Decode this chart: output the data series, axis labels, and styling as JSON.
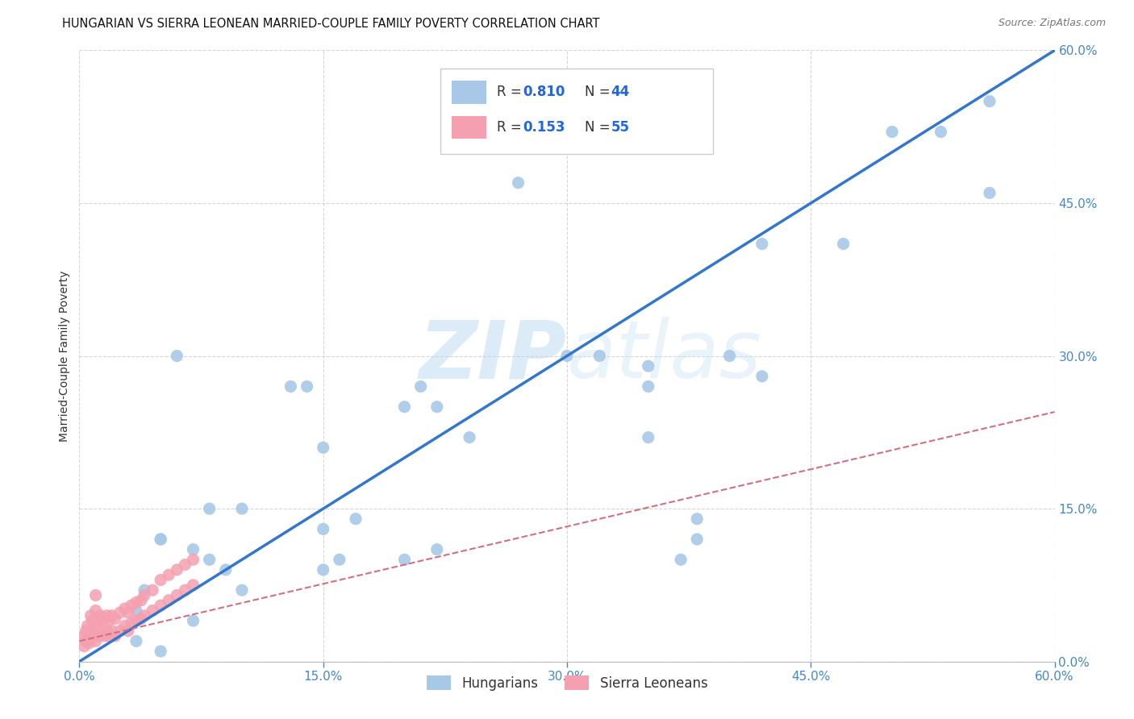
{
  "title": "HUNGARIAN VS SIERRA LEONEAN MARRIED-COUPLE FAMILY POVERTY CORRELATION CHART",
  "source": "Source: ZipAtlas.com",
  "ylabel": "Married-Couple Family Poverty",
  "xlim": [
    0,
    0.6
  ],
  "ylim": [
    0,
    0.6
  ],
  "xtick_vals": [
    0.0,
    0.15,
    0.3,
    0.45,
    0.6
  ],
  "ytick_vals": [
    0.0,
    0.15,
    0.3,
    0.45,
    0.6
  ],
  "hungarian_color": "#a8c8e8",
  "sierra_color": "#f4a0b0",
  "hungarian_line_color": "#3377cc",
  "sierra_line_color": "#d07080",
  "background_color": "#ffffff",
  "grid_color": "#cccccc",
  "watermark_color": "#ddeef8",
  "legend_r_hungarian": "R = 0.810",
  "legend_n_hungarian": "N = 44",
  "legend_r_sierra": "R = 0.153",
  "legend_n_sierra": "N = 55",
  "legend_label_hungarian": "Hungarians",
  "legend_label_sierra": "Sierra Leoneans",
  "hungarian_x": [
    0.035,
    0.035,
    0.04,
    0.05,
    0.07,
    0.09,
    0.1,
    0.13,
    0.14,
    0.15,
    0.15,
    0.16,
    0.17,
    0.2,
    0.2,
    0.21,
    0.22,
    0.22,
    0.24,
    0.27,
    0.3,
    0.32,
    0.35,
    0.35,
    0.35,
    0.37,
    0.38,
    0.38,
    0.4,
    0.42,
    0.42,
    0.47,
    0.5,
    0.53,
    0.56,
    0.56,
    0.06,
    0.08,
    0.08,
    0.1,
    0.05,
    0.05,
    0.07,
    0.15
  ],
  "hungarian_y": [
    0.05,
    0.02,
    0.07,
    0.12,
    0.11,
    0.09,
    0.07,
    0.27,
    0.27,
    0.09,
    0.21,
    0.1,
    0.14,
    0.1,
    0.25,
    0.27,
    0.25,
    0.11,
    0.22,
    0.47,
    0.3,
    0.3,
    0.29,
    0.27,
    0.22,
    0.1,
    0.14,
    0.12,
    0.3,
    0.41,
    0.28,
    0.41,
    0.52,
    0.52,
    0.46,
    0.55,
    0.3,
    0.15,
    0.1,
    0.15,
    0.12,
    0.01,
    0.04,
    0.13
  ],
  "sierra_x": [
    0.005,
    0.005,
    0.007,
    0.007,
    0.008,
    0.008,
    0.01,
    0.01,
    0.01,
    0.01,
    0.012,
    0.012,
    0.013,
    0.013,
    0.015,
    0.015,
    0.017,
    0.017,
    0.018,
    0.018,
    0.02,
    0.02,
    0.022,
    0.022,
    0.025,
    0.025,
    0.028,
    0.028,
    0.03,
    0.03,
    0.032,
    0.032,
    0.035,
    0.035,
    0.038,
    0.038,
    0.04,
    0.04,
    0.045,
    0.045,
    0.05,
    0.05,
    0.055,
    0.055,
    0.06,
    0.06,
    0.065,
    0.065,
    0.07,
    0.07,
    0.003,
    0.003,
    0.004,
    0.004,
    0.006
  ],
  "sierra_y": [
    0.02,
    0.035,
    0.03,
    0.045,
    0.025,
    0.04,
    0.02,
    0.035,
    0.05,
    0.065,
    0.025,
    0.04,
    0.03,
    0.045,
    0.025,
    0.04,
    0.03,
    0.045,
    0.025,
    0.04,
    0.03,
    0.045,
    0.025,
    0.042,
    0.03,
    0.048,
    0.035,
    0.052,
    0.03,
    0.048,
    0.038,
    0.055,
    0.04,
    0.058,
    0.042,
    0.06,
    0.045,
    0.065,
    0.05,
    0.07,
    0.055,
    0.08,
    0.06,
    0.085,
    0.065,
    0.09,
    0.07,
    0.095,
    0.075,
    0.1,
    0.015,
    0.025,
    0.02,
    0.03,
    0.018
  ],
  "hungarian_line_x": [
    0.0,
    0.6
  ],
  "hungarian_line_y": [
    0.0,
    0.6
  ],
  "sierra_line_x": [
    0.0,
    0.6
  ],
  "sierra_line_y": [
    0.02,
    0.245
  ]
}
